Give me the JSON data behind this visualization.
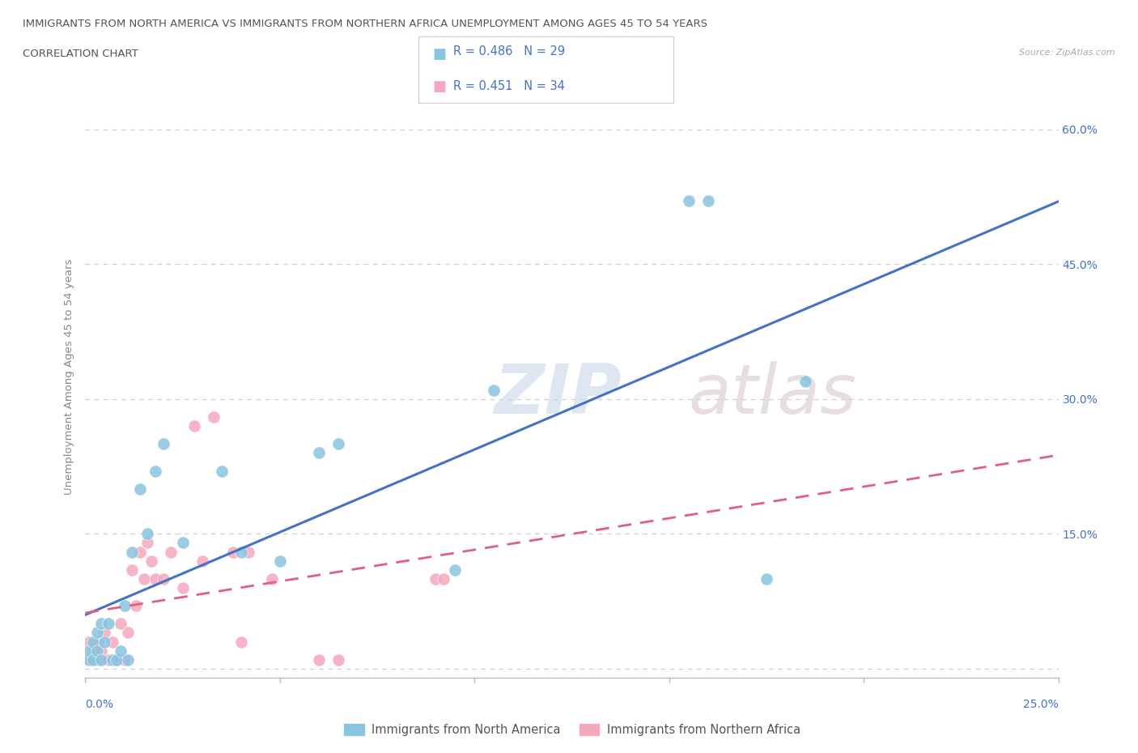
{
  "title_line1": "IMMIGRANTS FROM NORTH AMERICA VS IMMIGRANTS FROM NORTHERN AFRICA UNEMPLOYMENT AMONG AGES 45 TO 54 YEARS",
  "title_line2": "CORRELATION CHART",
  "source": "Source: ZipAtlas.com",
  "ylabel": "Unemployment Among Ages 45 to 54 years",
  "xlim": [
    0.0,
    0.25
  ],
  "ylim": [
    -0.01,
    0.66
  ],
  "yticks": [
    0.0,
    0.15,
    0.3,
    0.45,
    0.6
  ],
  "ytick_labels": [
    "",
    "15.0%",
    "30.0%",
    "45.0%",
    "60.0%"
  ],
  "color_blue": "#89c4e0",
  "color_pink": "#f4a8be",
  "color_blue_line": "#4472c4",
  "color_pink_line": "#e06080",
  "legend_label1": "Immigrants from North America",
  "legend_label2": "Immigrants from Northern Africa",
  "blue_x": [
    0.001,
    0.001,
    0.002,
    0.002,
    0.003,
    0.003,
    0.004,
    0.004,
    0.005,
    0.006,
    0.007,
    0.008,
    0.009,
    0.01,
    0.011,
    0.012,
    0.014,
    0.016,
    0.018,
    0.02,
    0.025,
    0.035,
    0.04,
    0.05,
    0.06,
    0.065,
    0.095,
    0.105,
    0.155,
    0.16,
    0.175,
    0.185
  ],
  "blue_y": [
    0.01,
    0.02,
    0.01,
    0.03,
    0.02,
    0.04,
    0.01,
    0.05,
    0.03,
    0.05,
    0.01,
    0.01,
    0.02,
    0.07,
    0.01,
    0.13,
    0.2,
    0.15,
    0.22,
    0.25,
    0.14,
    0.22,
    0.13,
    0.12,
    0.24,
    0.25,
    0.11,
    0.31,
    0.52,
    0.52,
    0.1,
    0.32
  ],
  "pink_x": [
    0.001,
    0.001,
    0.002,
    0.003,
    0.003,
    0.004,
    0.005,
    0.006,
    0.007,
    0.008,
    0.009,
    0.01,
    0.011,
    0.012,
    0.013,
    0.014,
    0.015,
    0.016,
    0.017,
    0.018,
    0.02,
    0.022,
    0.025,
    0.028,
    0.03,
    0.033,
    0.038,
    0.04,
    0.042,
    0.048,
    0.06,
    0.065,
    0.09,
    0.092
  ],
  "pink_y": [
    0.01,
    0.03,
    0.02,
    0.01,
    0.03,
    0.02,
    0.04,
    0.01,
    0.03,
    0.01,
    0.05,
    0.01,
    0.04,
    0.11,
    0.07,
    0.13,
    0.1,
    0.14,
    0.12,
    0.1,
    0.1,
    0.13,
    0.09,
    0.27,
    0.12,
    0.28,
    0.13,
    0.03,
    0.13,
    0.1,
    0.01,
    0.01,
    0.1,
    0.1
  ],
  "watermark_zip": "ZIP",
  "watermark_atlas": "atlas",
  "background_color": "#ffffff",
  "grid_color": "#cccccc",
  "title_color": "#555555",
  "axis_label_color": "#888888",
  "tick_color": "#4472c4",
  "source_color": "#aaaaaa"
}
